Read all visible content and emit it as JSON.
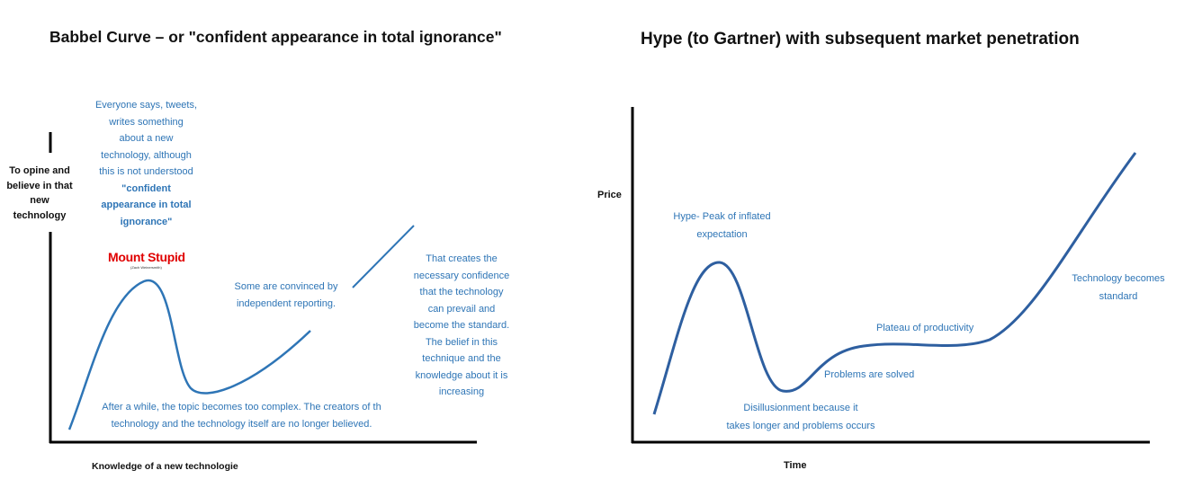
{
  "left": {
    "title": "Babbel Curve – or \"confident appearance in total ignorance\"",
    "y_label": [
      "To opine and",
      "believe in that",
      "new",
      "technology"
    ],
    "x_label": "Knowledge of a new technologie",
    "annotation_top": [
      "Everyone says, tweets,",
      "writes something",
      "about a new",
      "technology, although",
      "this is not understood"
    ],
    "annotation_top_bold": [
      "\"confident",
      "appearance in total",
      "ignorance\""
    ],
    "peak_label": "Mount Stupid",
    "peak_credit": "(Zach Weinersmith)",
    "annotation_mid": [
      "Some are convinced by",
      "independent reporting."
    ],
    "annotation_right": [
      "That creates the",
      "necessary confidence",
      "that the technology",
      "can prevail and",
      "become the standard.",
      "The belief in this",
      "technique and the",
      "knowledge about it is",
      "increasing"
    ],
    "annotation_bottom": [
      "After a while, the topic becomes too complex. The creators of th",
      "technology and the technology itself are no longer believed."
    ]
  },
  "right": {
    "title": "Hype (to Gartner) with subsequent market penetration",
    "y_label": "Price",
    "x_label": "Time",
    "annotation_hype": [
      "Hype- Peak of inflated",
      "expectation"
    ],
    "annotation_disillusion": [
      "Disillusionment because it",
      "takes longer and problems occurs"
    ],
    "annotation_solved": "Problems are solved",
    "annotation_plateau": "Plateau of productivity",
    "annotation_standard": [
      "Technology becomes",
      "standard"
    ]
  },
  "colors": {
    "curve": "#2e5fa0",
    "text_blue": "#2e75b6",
    "axis": "#000000",
    "red": "#e00000"
  }
}
